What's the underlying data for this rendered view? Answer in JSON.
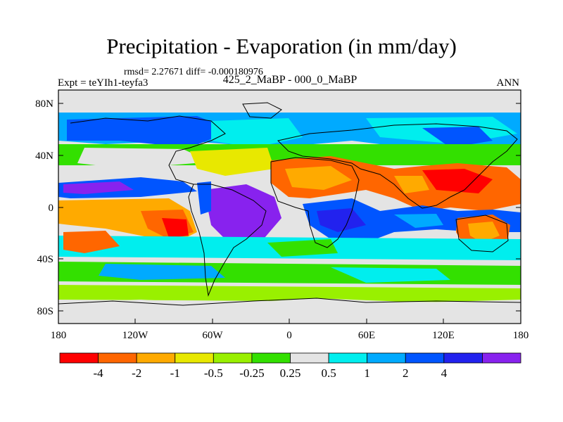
{
  "figure": {
    "title": "Precipitation - Evaporation (in mm/day)",
    "stats": "rmsd= 2.27671 diff= -0.000180976",
    "experiment": "Expt = teYIh1-teyfa3",
    "case": "425_2_MaBP - 000_0_MaBP",
    "season": "ANN"
  },
  "map_axes": {
    "lon_ticks": [
      "180",
      "120W",
      "60W",
      "0",
      "60E",
      "120E",
      "180"
    ],
    "lat_ticks": [
      "80N",
      "40N",
      "0",
      "40S",
      "80S"
    ]
  },
  "colorbar": {
    "labels": [
      "-4",
      "-2",
      "-1",
      "-0.5",
      "-0.25",
      "0.25",
      "0.5",
      "1",
      "2",
      "4"
    ],
    "colors": [
      "#ff0000",
      "#ff6600",
      "#ffaa00",
      "#e8e800",
      "#99f000",
      "#33e000",
      "#e4e4e4",
      "#00eeee",
      "#00aaff",
      "#0055ff",
      "#2222ee",
      "#8822ee"
    ]
  },
  "palette": {
    "land_outline": "#000000",
    "frame": "#000000"
  }
}
